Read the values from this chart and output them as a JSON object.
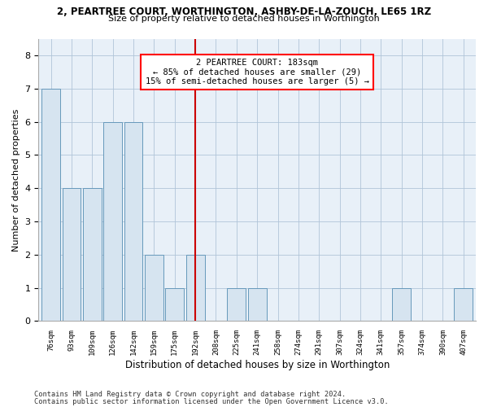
{
  "title_line1": "2, PEARTREE COURT, WORTHINGTON, ASHBY-DE-LA-ZOUCH, LE65 1RZ",
  "title_line2": "Size of property relative to detached houses in Worthington",
  "xlabel": "Distribution of detached houses by size in Worthington",
  "ylabel": "Number of detached properties",
  "categories": [
    "76sqm",
    "93sqm",
    "109sqm",
    "126sqm",
    "142sqm",
    "159sqm",
    "175sqm",
    "192sqm",
    "208sqm",
    "225sqm",
    "241sqm",
    "258sqm",
    "274sqm",
    "291sqm",
    "307sqm",
    "324sqm",
    "341sqm",
    "357sqm",
    "374sqm",
    "390sqm",
    "407sqm"
  ],
  "values": [
    7,
    4,
    4,
    6,
    6,
    2,
    1,
    2,
    0,
    1,
    1,
    0,
    0,
    0,
    0,
    0,
    0,
    1,
    0,
    0,
    1
  ],
  "bar_color": "#d6e4f0",
  "bar_edgecolor": "#6699bb",
  "highlight_index": 7,
  "highlight_color": "#cc0000",
  "ylim": [
    0,
    8.5
  ],
  "yticks": [
    0,
    1,
    2,
    3,
    4,
    5,
    6,
    7,
    8
  ],
  "annotation_text": "2 PEARTREE COURT: 183sqm\n← 85% of detached houses are smaller (29)\n15% of semi-detached houses are larger (5) →",
  "footnote1": "Contains HM Land Registry data © Crown copyright and database right 2024.",
  "footnote2": "Contains public sector information licensed under the Open Government Licence v3.0.",
  "background_color": "#ffffff",
  "plot_background": "#e8f0f8",
  "grid_color": "#b0c4d8"
}
